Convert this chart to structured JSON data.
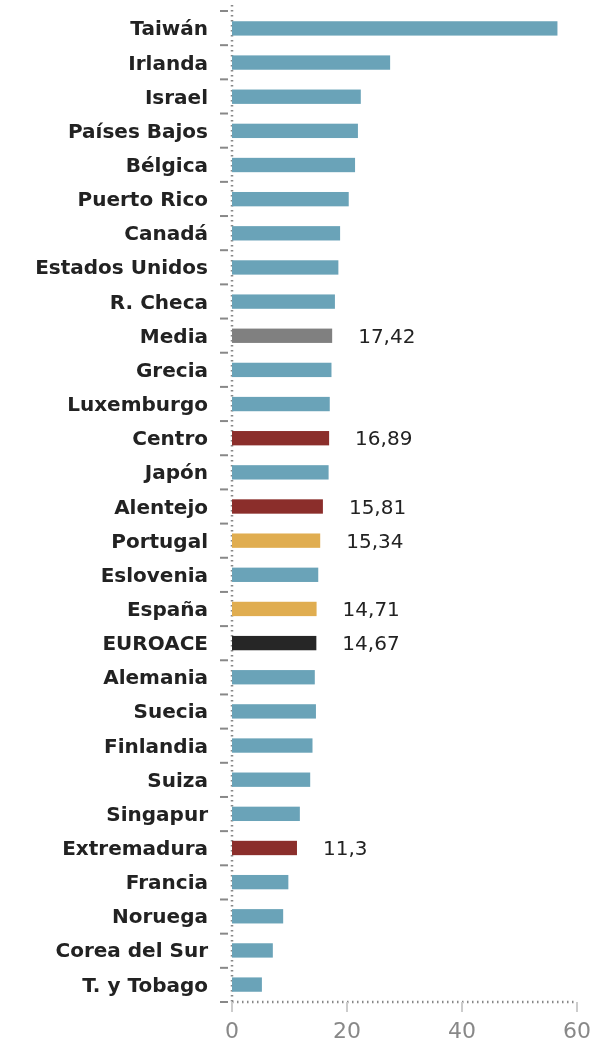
{
  "chart_data": {
    "type": "bar",
    "orientation": "horizontal",
    "categories": [
      "Taiwán",
      "Irlanda",
      "Israel",
      "Países Bajos",
      "Bélgica",
      "Puerto Rico",
      "Canadá",
      "Estados Unidos",
      "R. Checa",
      "Media",
      "Grecia",
      "Luxemburgo",
      "Centro",
      "Japón",
      "Alentejo",
      "Portugal",
      "Eslovenia",
      "España",
      "EUROACE",
      "Alemania",
      "Suecia",
      "Finlandia",
      "Suiza",
      "Singapur",
      "Extremadura",
      "Francia",
      "Noruega",
      "Corea del Sur",
      "T. y Tobago"
    ],
    "values": [
      56.6,
      27.5,
      22.4,
      21.9,
      21.4,
      20.3,
      18.8,
      18.5,
      17.9,
      17.42,
      17.3,
      17.0,
      16.89,
      16.8,
      15.81,
      15.34,
      15.0,
      14.71,
      14.67,
      14.4,
      14.6,
      14.0,
      13.6,
      11.8,
      11.3,
      9.8,
      8.9,
      7.1,
      5.2
    ],
    "colors": [
      "#6aa3b8",
      "#6aa3b8",
      "#6aa3b8",
      "#6aa3b8",
      "#6aa3b8",
      "#6aa3b8",
      "#6aa3b8",
      "#6aa3b8",
      "#6aa3b8",
      "#808080",
      "#6aa3b8",
      "#6aa3b8",
      "#8b2e2b",
      "#6aa3b8",
      "#8b2e2b",
      "#e0ad50",
      "#6aa3b8",
      "#e0ad50",
      "#262626",
      "#6aa3b8",
      "#6aa3b8",
      "#6aa3b8",
      "#6aa3b8",
      "#6aa3b8",
      "#8b2e2b",
      "#6aa3b8",
      "#6aa3b8",
      "#6aa3b8",
      "#6aa3b8"
    ],
    "value_labels": [
      null,
      null,
      null,
      null,
      null,
      null,
      null,
      null,
      null,
      "17,42",
      null,
      null,
      "16,89",
      null,
      "15,81",
      "15,34",
      null,
      "14,71",
      "14,67",
      null,
      null,
      null,
      null,
      null,
      "11,3",
      null,
      null,
      null,
      null
    ],
    "xlim": [
      0,
      60
    ],
    "xticks": [
      0,
      20,
      40,
      60
    ]
  }
}
